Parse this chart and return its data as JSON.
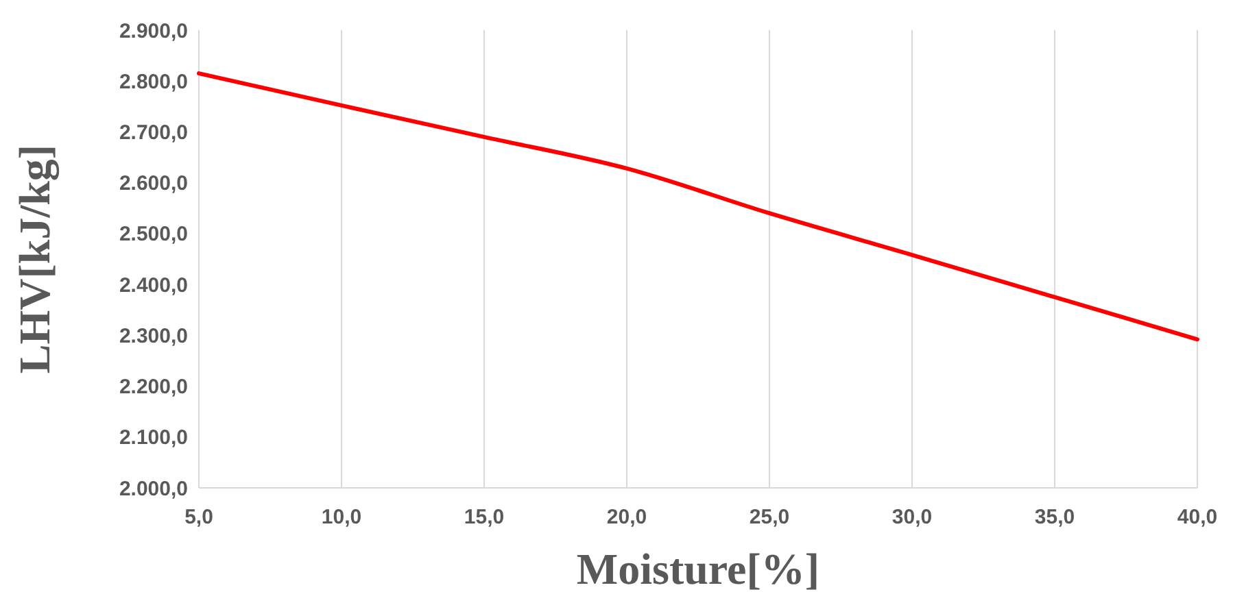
{
  "chart_data": {
    "type": "line",
    "xlabel": "Moisture[%]",
    "ylabel": "LHV[kJ/kg]",
    "x": [
      5,
      10,
      15,
      20,
      25,
      30,
      35,
      40
    ],
    "series": [
      {
        "color": "#ff0000",
        "values": [
          2815,
          2752,
          2690,
          2628,
          2540,
          2458,
          2375,
          2292
        ]
      }
    ],
    "xlim": [
      5,
      40
    ],
    "ylim": [
      2000,
      2900
    ],
    "xticks": [
      {
        "value": 5,
        "label": "5,0"
      },
      {
        "value": 10,
        "label": "10,0"
      },
      {
        "value": 15,
        "label": "15,0"
      },
      {
        "value": 20,
        "label": "20,0"
      },
      {
        "value": 25,
        "label": "25,0"
      },
      {
        "value": 30,
        "label": "30,0"
      },
      {
        "value": 35,
        "label": "35,0"
      },
      {
        "value": 40,
        "label": "40,0"
      }
    ],
    "yticks": [
      {
        "value": 2000,
        "label": "2.000,0"
      },
      {
        "value": 2100,
        "label": "2.100,0"
      },
      {
        "value": 2200,
        "label": "2.200,0"
      },
      {
        "value": 2300,
        "label": "2.300,0"
      },
      {
        "value": 2400,
        "label": "2.400,0"
      },
      {
        "value": 2500,
        "label": "2.500,0"
      },
      {
        "value": 2600,
        "label": "2.600,0"
      },
      {
        "value": 2700,
        "label": "2.700,0"
      },
      {
        "value": 2800,
        "label": "2.800,0"
      },
      {
        "value": 2900,
        "label": "2.900,0"
      }
    ],
    "grid": "x",
    "marker": "none",
    "line_style": "solid"
  }
}
